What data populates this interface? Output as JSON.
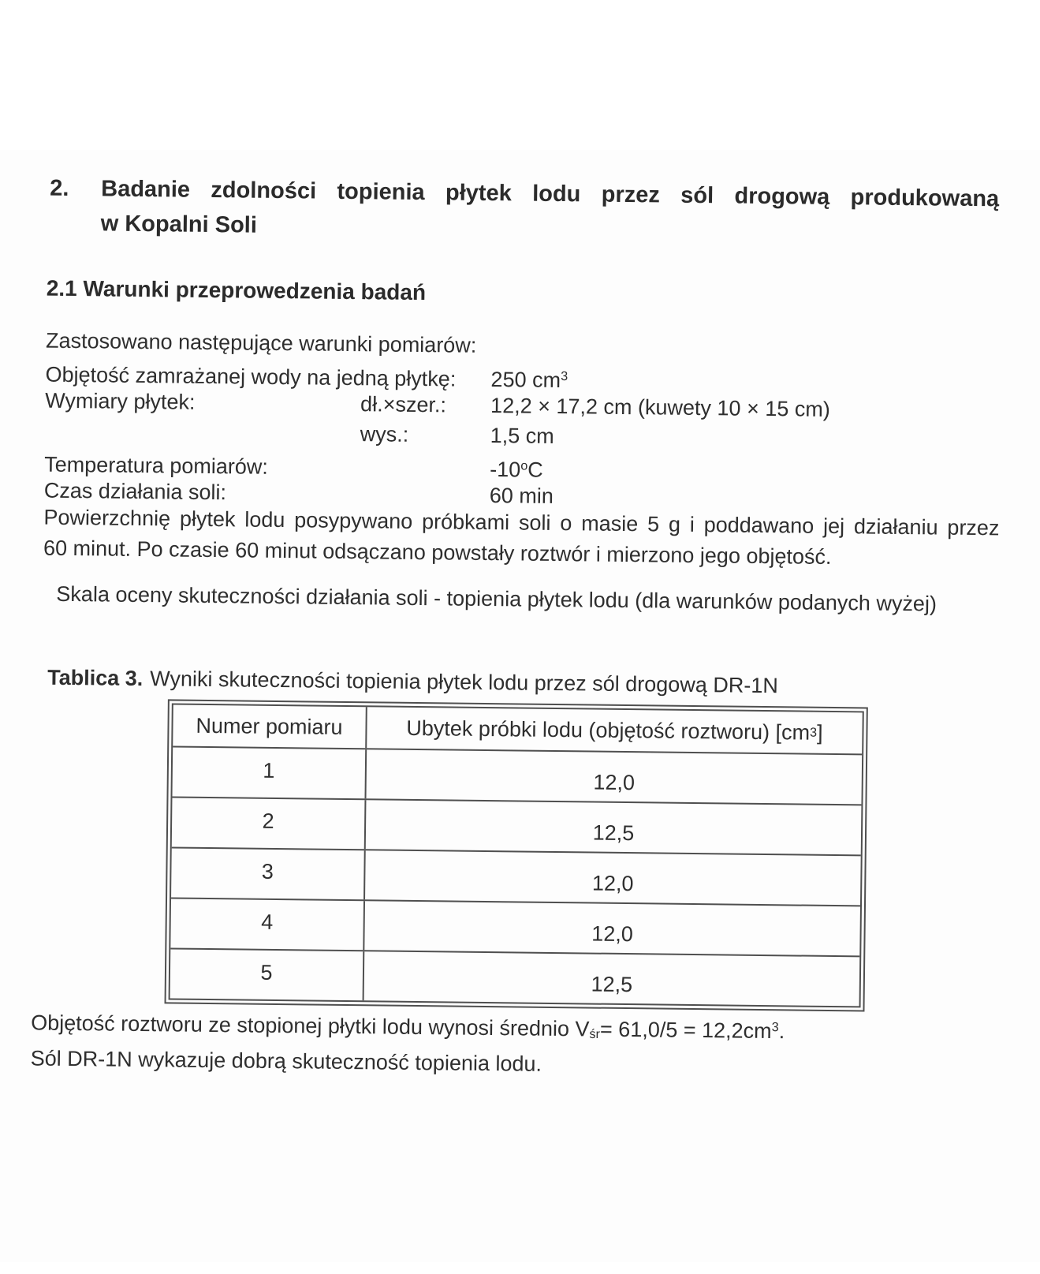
{
  "colors": {
    "ink": "#2e2e2e",
    "table_border": "#4f4f4f",
    "background": "#ffffff"
  },
  "heading": {
    "number": "2.",
    "line1": "Badanie zdolności topienia płytek lodu przez sól drogową produkowaną",
    "line2": "w Kopalni Soli"
  },
  "subheading": "2.1 Warunki przeprowedzenia badań",
  "conditions": {
    "intro": "Zastosowano następujące warunki pomiarów:",
    "volume_label": "Objętość zamrażanej wody na jedną płytkę:",
    "volume_value": "250 cm",
    "volume_sup": "3",
    "dims_label": "Wymiary płytek:",
    "dims_key1": "dł.×szer.:",
    "dims_val1": "12,2 × 17,2 cm (kuwety 10 × 15 cm)",
    "dims_key2": "wys.:",
    "dims_val2": "1,5 cm",
    "temp_label": "Temperatura pomiarów:",
    "temp_value_num": "-10",
    "temp_value_sup": "o",
    "temp_value_unit": "C",
    "time_label": "Czas działania soli:",
    "time_value": "60 min"
  },
  "paragraph": {
    "line1": "Powierzchnię płytek lodu posypywano próbkami soli o masie 5 g i poddawano jej działaniu przez",
    "line2": "60 minut. Po czasie 60 minut odsączano powstały roztwór i mierzono jego objętość."
  },
  "scale_note": "Skala oceny skuteczności działania soli - topienia płytek lodu (dla warunków podanych wyżej)",
  "table": {
    "caption_bold": "Tablica 3.",
    "caption_rest": "Wyniki skuteczności topienia płytek lodu przez sól drogową DR-1N",
    "col1_header": "Numer pomiaru",
    "col2_header_main": "Ubytek próbki lodu (objętość roztworu) [cm",
    "col2_header_sup": "3",
    "col2_header_close": "]",
    "rows": [
      {
        "num": "1",
        "value": "12,0"
      },
      {
        "num": "2",
        "value": "12,5"
      },
      {
        "num": "3",
        "value": "12,0"
      },
      {
        "num": "4",
        "value": "12,0"
      },
      {
        "num": "5",
        "value": "12,5"
      }
    ]
  },
  "footer": {
    "line1_pre": "Objętość roztworu ze stopionej płytki lodu wynosi średnio V",
    "line1_sub": "śr",
    "line1_mid": "= 61,0/5 = 12,2cm",
    "line1_sup": "3",
    "line1_end": ".",
    "line2": "Sól DR-1N wykazuje dobrą skuteczność topienia lodu."
  }
}
